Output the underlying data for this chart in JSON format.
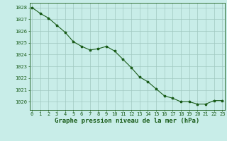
{
  "x": [
    0,
    1,
    2,
    3,
    4,
    5,
    6,
    7,
    8,
    9,
    10,
    11,
    12,
    13,
    14,
    15,
    16,
    17,
    18,
    19,
    20,
    21,
    22,
    23
  ],
  "y": [
    1028.0,
    1027.5,
    1027.1,
    1026.5,
    1025.9,
    1025.1,
    1024.7,
    1024.4,
    1024.5,
    1024.7,
    1024.3,
    1023.6,
    1022.9,
    1022.1,
    1021.7,
    1021.1,
    1020.5,
    1020.3,
    1020.0,
    1020.0,
    1019.8,
    1019.8,
    1020.1,
    1020.1
  ],
  "ylim": [
    1019.3,
    1028.4
  ],
  "yticks": [
    1020,
    1021,
    1022,
    1023,
    1024,
    1025,
    1026,
    1027,
    1028
  ],
  "xticks": [
    0,
    1,
    2,
    3,
    4,
    5,
    6,
    7,
    8,
    9,
    10,
    11,
    12,
    13,
    14,
    15,
    16,
    17,
    18,
    19,
    20,
    21,
    22,
    23
  ],
  "xlabel": "Graphe pression niveau de la mer (hPa)",
  "line_color": "#1a5c1a",
  "marker": "*",
  "marker_size": 2.5,
  "bg_color": "#c8ede8",
  "grid_color": "#a0c8c0",
  "text_color": "#1a5c1a",
  "tick_fontsize": 5.0,
  "xlabel_fontsize": 6.5,
  "xlim": [
    -0.3,
    23.3
  ]
}
